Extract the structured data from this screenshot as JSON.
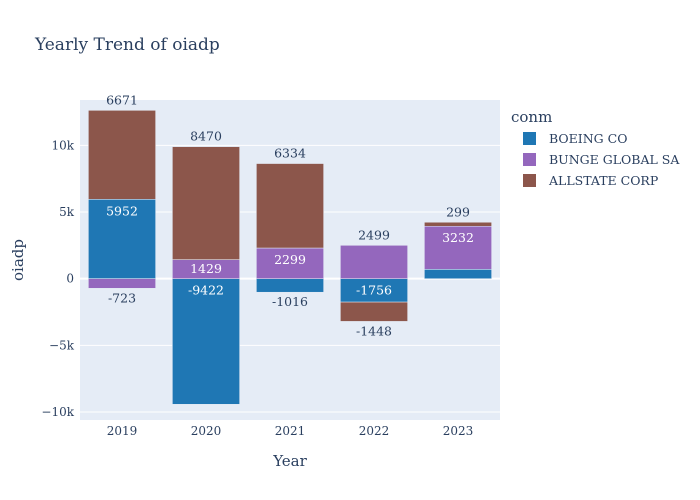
{
  "chart_data": {
    "type": "bar",
    "barmode": "relative",
    "title": "Yearly Trend of oiadp",
    "xlabel": "Year",
    "ylabel": "oiadp",
    "categories": [
      "2019",
      "2020",
      "2021",
      "2022",
      "2023"
    ],
    "ylim": [
      -10600,
      13400
    ],
    "yticks": [
      -10000,
      -5000,
      0,
      5000,
      10000
    ],
    "ytick_labels": [
      "−10k",
      "−5k",
      "0",
      "5k",
      "10k"
    ],
    "grid": true,
    "legend_title": "conm",
    "legend_position": "top-right",
    "series": [
      {
        "name": "BOEING CO",
        "color": "#1f77b4",
        "values": [
          5952,
          -9422,
          -1016,
          -1756,
          700
        ],
        "labels": [
          "5952",
          "-9422",
          "-1016",
          "-1756",
          ""
        ]
      },
      {
        "name": "BUNGE GLOBAL SA",
        "color": "#9467bd",
        "values": [
          -723,
          1429,
          2299,
          2499,
          3232
        ],
        "labels": [
          "-723",
          "1429",
          "2299",
          "2499",
          "3232"
        ]
      },
      {
        "name": "ALLSTATE CORP",
        "color": "#8c564b",
        "values": [
          6671,
          8470,
          6334,
          -1448,
          299
        ],
        "labels": [
          "6671",
          "8470",
          "6334",
          "-1448",
          "299"
        ]
      }
    ]
  }
}
